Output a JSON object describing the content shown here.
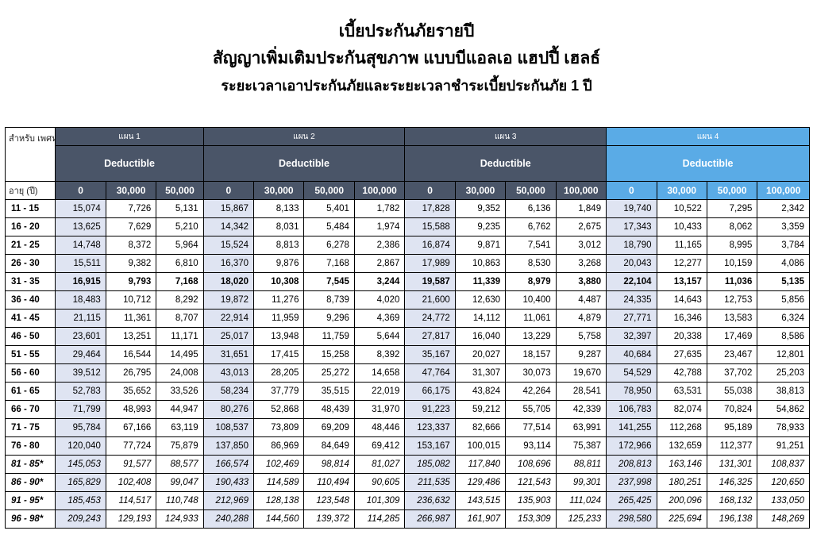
{
  "header": {
    "title_line1": "เบี้ยประกันภัยรายปี",
    "title_line2": "สัญญาเพิ่มเติมประกันสุขภาพ แบบบีแอลเอ แฮปปี้ เฮลธ์",
    "title_line3": "ระยะเวลาเอาประกันภัยและระยะเวลาชำระเบี้ยประกันภัย 1 ปี"
  },
  "table": {
    "corner_label": "สำหรับ เพศหญิง",
    "age_label": "อายุ (ปี)",
    "plans": [
      {
        "label": "แผน 1",
        "deductible": "Deductible",
        "columns": [
          "0",
          "30,000",
          "50,000"
        ]
      },
      {
        "label": "แผน 2",
        "deductible": "Deductible",
        "columns": [
          "0",
          "30,000",
          "50,000",
          "100,000"
        ]
      },
      {
        "label": "แผน 3",
        "deductible": "Deductible",
        "columns": [
          "0",
          "30,000",
          "50,000",
          "100,000"
        ]
      },
      {
        "label": "แผน 4",
        "deductible": "Deductible",
        "columns": [
          "0",
          "30,000",
          "50,000",
          "100,000"
        ]
      }
    ],
    "header_colors": {
      "plan_1_to_3": "#4a5568",
      "plan_4": "#5aabe6",
      "zero_column_shade": "#dfe4f2"
    },
    "rows": [
      {
        "age": "11 - 15",
        "style": "normal",
        "values": [
          "15,074",
          "7,726",
          "5,131",
          "15,867",
          "8,133",
          "5,401",
          "1,782",
          "17,828",
          "9,352",
          "6,136",
          "1,849",
          "19,740",
          "10,522",
          "7,295",
          "2,342"
        ]
      },
      {
        "age": "16 - 20",
        "style": "normal",
        "values": [
          "13,625",
          "7,629",
          "5,210",
          "14,342",
          "8,031",
          "5,484",
          "1,974",
          "15,588",
          "9,235",
          "6,762",
          "2,675",
          "17,343",
          "10,433",
          "8,062",
          "3,359"
        ]
      },
      {
        "age": "21 - 25",
        "style": "normal",
        "values": [
          "14,748",
          "8,372",
          "5,964",
          "15,524",
          "8,813",
          "6,278",
          "2,386",
          "16,874",
          "9,871",
          "7,541",
          "3,012",
          "18,790",
          "11,165",
          "8,995",
          "3,784"
        ]
      },
      {
        "age": "26 - 30",
        "style": "normal",
        "values": [
          "15,511",
          "9,382",
          "6,810",
          "16,370",
          "9,876",
          "7,168",
          "2,867",
          "17,989",
          "10,863",
          "8,530",
          "3,268",
          "20,043",
          "12,277",
          "10,159",
          "4,086"
        ]
      },
      {
        "age": "31 - 35",
        "style": "bold",
        "values": [
          "16,915",
          "9,793",
          "7,168",
          "18,020",
          "10,308",
          "7,545",
          "3,244",
          "19,587",
          "11,339",
          "8,979",
          "3,880",
          "22,104",
          "13,157",
          "11,036",
          "5,135"
        ]
      },
      {
        "age": "36 - 40",
        "style": "normal",
        "values": [
          "18,483",
          "10,712",
          "8,292",
          "19,872",
          "11,276",
          "8,739",
          "4,020",
          "21,600",
          "12,630",
          "10,400",
          "4,487",
          "24,335",
          "14,643",
          "12,753",
          "5,856"
        ]
      },
      {
        "age": "41 - 45",
        "style": "normal",
        "values": [
          "21,115",
          "11,361",
          "8,707",
          "22,914",
          "11,959",
          "9,296",
          "4,369",
          "24,772",
          "14,112",
          "11,061",
          "4,879",
          "27,771",
          "16,346",
          "13,583",
          "6,324"
        ]
      },
      {
        "age": "46 - 50",
        "style": "normal",
        "values": [
          "23,601",
          "13,251",
          "11,171",
          "25,017",
          "13,948",
          "11,759",
          "5,644",
          "27,817",
          "16,040",
          "13,229",
          "5,758",
          "32,397",
          "20,338",
          "17,469",
          "8,586"
        ]
      },
      {
        "age": "51 - 55",
        "style": "normal",
        "values": [
          "29,464",
          "16,544",
          "14,495",
          "31,651",
          "17,415",
          "15,258",
          "8,392",
          "35,167",
          "20,027",
          "18,157",
          "9,287",
          "40,684",
          "27,635",
          "23,467",
          "12,801"
        ]
      },
      {
        "age": "56 - 60",
        "style": "normal",
        "values": [
          "39,512",
          "26,795",
          "24,008",
          "43,013",
          "28,205",
          "25,272",
          "14,658",
          "47,764",
          "31,307",
          "30,073",
          "19,670",
          "54,529",
          "42,788",
          "37,702",
          "25,203"
        ]
      },
      {
        "age": "61 - 65",
        "style": "normal",
        "values": [
          "52,783",
          "35,652",
          "33,526",
          "58,234",
          "37,779",
          "35,515",
          "22,019",
          "66,175",
          "43,824",
          "42,264",
          "28,541",
          "78,950",
          "63,531",
          "55,038",
          "38,813"
        ]
      },
      {
        "age": "66 - 70",
        "style": "normal",
        "values": [
          "71,799",
          "48,993",
          "44,947",
          "80,276",
          "52,868",
          "48,439",
          "31,970",
          "91,223",
          "59,212",
          "55,705",
          "42,339",
          "106,783",
          "82,074",
          "70,824",
          "54,862"
        ]
      },
      {
        "age": "71 - 75",
        "style": "normal",
        "values": [
          "95,784",
          "67,166",
          "63,119",
          "108,537",
          "73,809",
          "69,209",
          "48,446",
          "123,337",
          "82,666",
          "77,514",
          "63,991",
          "141,255",
          "112,268",
          "95,189",
          "78,933"
        ]
      },
      {
        "age": "76 - 80",
        "style": "normal",
        "values": [
          "120,040",
          "77,724",
          "75,879",
          "137,850",
          "86,969",
          "84,649",
          "69,412",
          "153,167",
          "100,015",
          "93,114",
          "75,387",
          "172,966",
          "132,659",
          "112,377",
          "91,251"
        ]
      },
      {
        "age": "81 - 85*",
        "style": "italic",
        "values": [
          "145,053",
          "91,577",
          "88,577",
          "166,574",
          "102,469",
          "98,814",
          "81,027",
          "185,082",
          "117,840",
          "108,696",
          "88,811",
          "208,813",
          "163,146",
          "131,301",
          "108,837"
        ]
      },
      {
        "age": "86 - 90*",
        "style": "italic",
        "values": [
          "165,829",
          "102,408",
          "99,047",
          "190,433",
          "114,589",
          "110,494",
          "90,605",
          "211,535",
          "129,486",
          "121,543",
          "99,301",
          "237,998",
          "180,251",
          "146,325",
          "120,650"
        ]
      },
      {
        "age": "91 - 95*",
        "style": "italic",
        "values": [
          "185,453",
          "114,517",
          "110,748",
          "212,969",
          "128,138",
          "123,548",
          "101,309",
          "236,632",
          "143,515",
          "135,903",
          "111,024",
          "265,425",
          "200,096",
          "168,132",
          "133,050"
        ]
      },
      {
        "age": "96 - 98*",
        "style": "italic",
        "values": [
          "209,243",
          "129,193",
          "124,933",
          "240,288",
          "144,560",
          "139,372",
          "114,285",
          "266,987",
          "161,907",
          "153,309",
          "125,233",
          "298,580",
          "225,694",
          "196,138",
          "148,269"
        ]
      }
    ]
  }
}
